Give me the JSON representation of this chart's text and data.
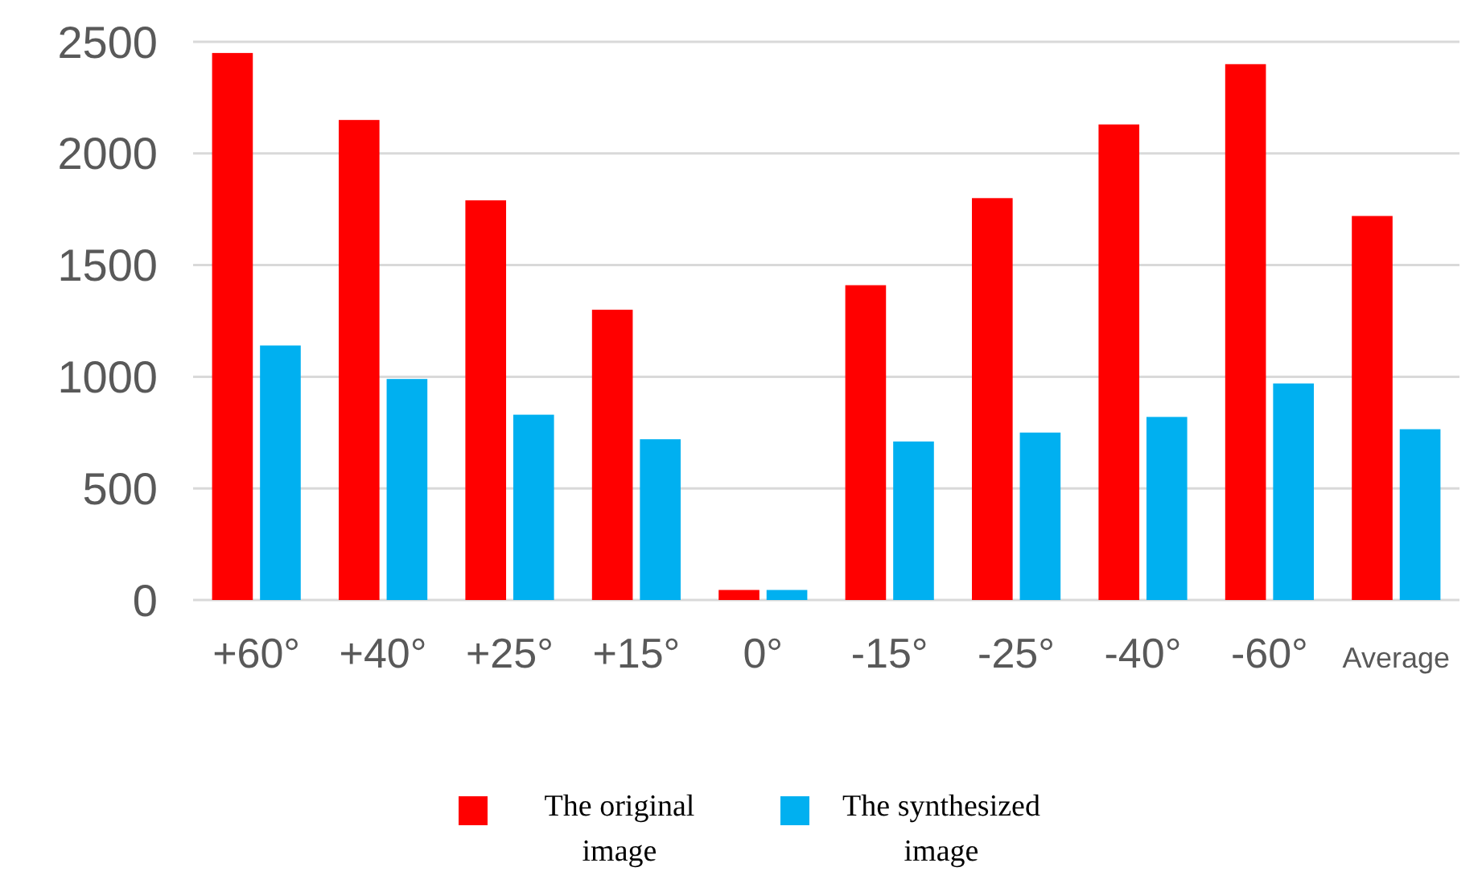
{
  "chart_data": {
    "type": "bar",
    "categories": [
      "+60°",
      "+40°",
      "+25°",
      "+15°",
      "0°",
      "-15°",
      "-25°",
      "-40°",
      "-60°",
      "Average"
    ],
    "series": [
      {
        "name": "The original image",
        "color": "#ff0000",
        "values": [
          2450,
          2150,
          1790,
          1300,
          45,
          1410,
          1800,
          2130,
          2400,
          1720
        ]
      },
      {
        "name": "The synthesized image",
        "color": "#00b0f0",
        "values": [
          1140,
          990,
          830,
          720,
          45,
          710,
          750,
          820,
          970,
          765
        ]
      }
    ],
    "ylim": [
      0,
      2500
    ],
    "yticks": [
      0,
      500,
      1000,
      1500,
      2000,
      2500
    ],
    "grid": "y",
    "legend": "bottom"
  }
}
